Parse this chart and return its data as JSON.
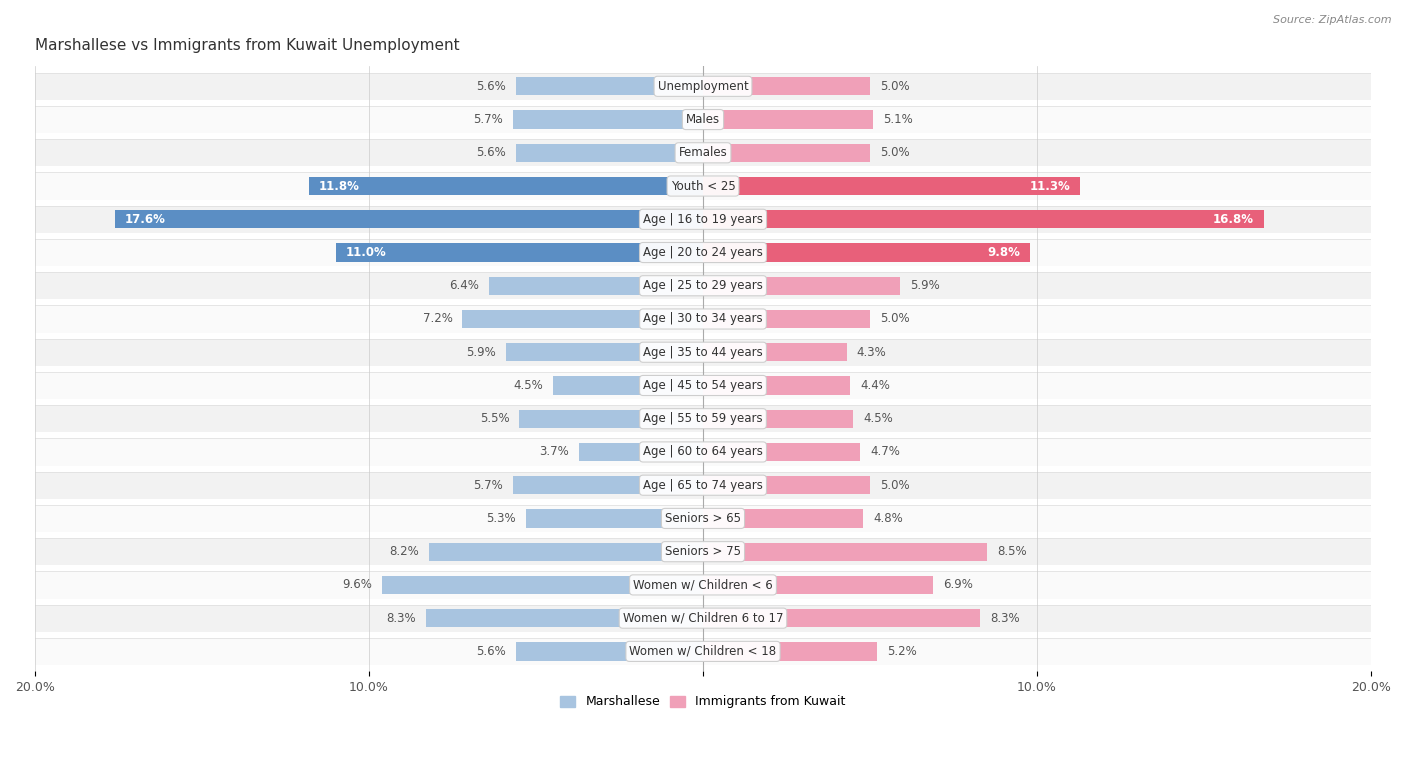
{
  "title": "Marshallese vs Immigrants from Kuwait Unemployment",
  "source": "Source: ZipAtlas.com",
  "categories": [
    "Unemployment",
    "Males",
    "Females",
    "Youth < 25",
    "Age | 16 to 19 years",
    "Age | 20 to 24 years",
    "Age | 25 to 29 years",
    "Age | 30 to 34 years",
    "Age | 35 to 44 years",
    "Age | 45 to 54 years",
    "Age | 55 to 59 years",
    "Age | 60 to 64 years",
    "Age | 65 to 74 years",
    "Seniors > 65",
    "Seniors > 75",
    "Women w/ Children < 6",
    "Women w/ Children 6 to 17",
    "Women w/ Children < 18"
  ],
  "marshallese": [
    5.6,
    5.7,
    5.6,
    11.8,
    17.6,
    11.0,
    6.4,
    7.2,
    5.9,
    4.5,
    5.5,
    3.7,
    5.7,
    5.3,
    8.2,
    9.6,
    8.3,
    5.6
  ],
  "kuwait": [
    5.0,
    5.1,
    5.0,
    11.3,
    16.8,
    9.8,
    5.9,
    5.0,
    4.3,
    4.4,
    4.5,
    4.7,
    5.0,
    4.8,
    8.5,
    6.9,
    8.3,
    5.2
  ],
  "marshallese_color": "#a8c4e0",
  "kuwait_color": "#f0a0b8",
  "highlight_marshallese_color": "#5b8ec4",
  "highlight_kuwait_color": "#e8607a",
  "x_max": 20.0,
  "legend_marshallese": "Marshallese",
  "legend_kuwait": "Immigrants from Kuwait",
  "row_colors": [
    "#f2f2f2",
    "#fafafa"
  ],
  "highlight_threshold": 10.5
}
